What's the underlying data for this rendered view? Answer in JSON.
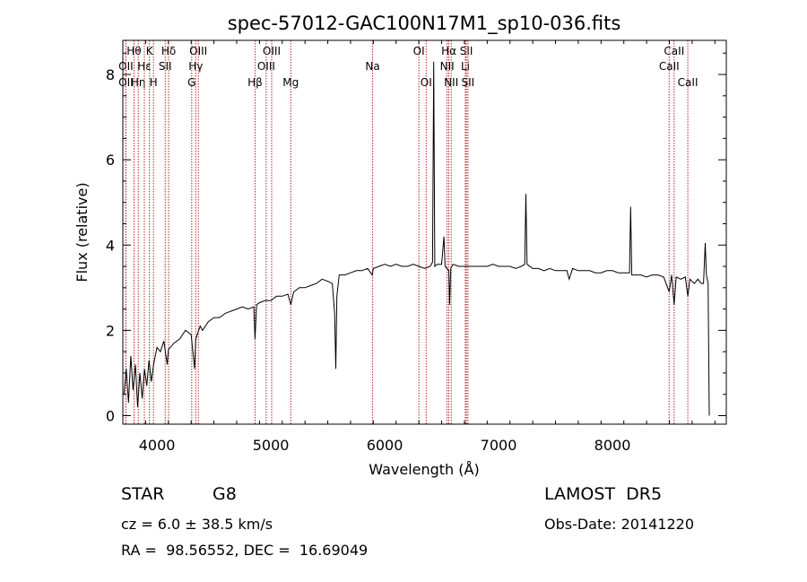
{
  "chart_data": {
    "type": "line",
    "title": "spec-57012-GAC100N17M1_sp10-036.fits",
    "xlabel": "Wavelength (Å)",
    "ylabel": "Flux (relative)",
    "xlim": [
      3700,
      9000
    ],
    "ylim": [
      -0.2,
      8.8
    ],
    "x_ticks": [
      4000,
      5000,
      6000,
      7000,
      8000
    ],
    "y_ticks": [
      0,
      2,
      4,
      6,
      8
    ],
    "grid": false,
    "series": [
      {
        "color": "#000000",
        "points": [
          [
            3710,
            0.5
          ],
          [
            3730,
            1.1
          ],
          [
            3750,
            0.3
          ],
          [
            3770,
            1.4
          ],
          [
            3790,
            0.6
          ],
          [
            3810,
            1.2
          ],
          [
            3830,
            0.2
          ],
          [
            3850,
            1.0
          ],
          [
            3870,
            0.4
          ],
          [
            3890,
            1.1
          ],
          [
            3910,
            0.7
          ],
          [
            3930,
            1.3
          ],
          [
            3950,
            0.8
          ],
          [
            3970,
            1.2
          ],
          [
            4000,
            1.6
          ],
          [
            4030,
            1.5
          ],
          [
            4060,
            1.75
          ],
          [
            4090,
            1.2
          ],
          [
            4100,
            1.55
          ],
          [
            4150,
            1.7
          ],
          [
            4200,
            1.8
          ],
          [
            4250,
            2.0
          ],
          [
            4300,
            1.9
          ],
          [
            4330,
            1.1
          ],
          [
            4340,
            1.8
          ],
          [
            4380,
            2.1
          ],
          [
            4400,
            2.0
          ],
          [
            4450,
            2.2
          ],
          [
            4500,
            2.3
          ],
          [
            4550,
            2.3
          ],
          [
            4600,
            2.4
          ],
          [
            4650,
            2.45
          ],
          [
            4700,
            2.5
          ],
          [
            4750,
            2.55
          ],
          [
            4800,
            2.5
          ],
          [
            4850,
            2.55
          ],
          [
            4861,
            1.8
          ],
          [
            4875,
            2.6
          ],
          [
            4900,
            2.65
          ],
          [
            4950,
            2.7
          ],
          [
            5000,
            2.7
          ],
          [
            5050,
            2.8
          ],
          [
            5100,
            2.8
          ],
          [
            5150,
            2.85
          ],
          [
            5175,
            2.6
          ],
          [
            5200,
            2.9
          ],
          [
            5250,
            3.0
          ],
          [
            5300,
            3.0
          ],
          [
            5350,
            3.05
          ],
          [
            5400,
            3.1
          ],
          [
            5450,
            3.2
          ],
          [
            5500,
            3.15
          ],
          [
            5540,
            3.1
          ],
          [
            5560,
            2.4
          ],
          [
            5570,
            1.1
          ],
          [
            5580,
            2.8
          ],
          [
            5600,
            3.3
          ],
          [
            5650,
            3.3
          ],
          [
            5700,
            3.35
          ],
          [
            5750,
            3.4
          ],
          [
            5800,
            3.4
          ],
          [
            5850,
            3.45
          ],
          [
            5890,
            3.3
          ],
          [
            5900,
            3.45
          ],
          [
            5950,
            3.5
          ],
          [
            6000,
            3.55
          ],
          [
            6050,
            3.5
          ],
          [
            6100,
            3.55
          ],
          [
            6150,
            3.5
          ],
          [
            6200,
            3.5
          ],
          [
            6250,
            3.55
          ],
          [
            6300,
            3.5
          ],
          [
            6350,
            3.45
          ],
          [
            6400,
            3.5
          ],
          [
            6420,
            3.6
          ],
          [
            6430,
            8.3
          ],
          [
            6440,
            3.5
          ],
          [
            6460,
            3.55
          ],
          [
            6500,
            3.55
          ],
          [
            6520,
            4.2
          ],
          [
            6530,
            3.5
          ],
          [
            6563,
            3.4
          ],
          [
            6570,
            2.6
          ],
          [
            6580,
            3.45
          ],
          [
            6600,
            3.55
          ],
          [
            6650,
            3.5
          ],
          [
            6700,
            3.5
          ],
          [
            6750,
            3.5
          ],
          [
            6800,
            3.5
          ],
          [
            6850,
            3.5
          ],
          [
            6900,
            3.5
          ],
          [
            6950,
            3.55
          ],
          [
            7000,
            3.5
          ],
          [
            7050,
            3.5
          ],
          [
            7100,
            3.5
          ],
          [
            7150,
            3.45
          ],
          [
            7200,
            3.5
          ],
          [
            7230,
            3.55
          ],
          [
            7240,
            5.2
          ],
          [
            7250,
            3.55
          ],
          [
            7300,
            3.45
          ],
          [
            7350,
            3.45
          ],
          [
            7400,
            3.4
          ],
          [
            7450,
            3.45
          ],
          [
            7500,
            3.4
          ],
          [
            7550,
            3.4
          ],
          [
            7600,
            3.4
          ],
          [
            7620,
            3.2
          ],
          [
            7650,
            3.45
          ],
          [
            7700,
            3.4
          ],
          [
            7750,
            3.4
          ],
          [
            7800,
            3.4
          ],
          [
            7850,
            3.35
          ],
          [
            7900,
            3.35
          ],
          [
            7950,
            3.4
          ],
          [
            8000,
            3.4
          ],
          [
            8050,
            3.35
          ],
          [
            8100,
            3.35
          ],
          [
            8150,
            3.35
          ],
          [
            8160,
            4.9
          ],
          [
            8170,
            3.3
          ],
          [
            8200,
            3.3
          ],
          [
            8250,
            3.3
          ],
          [
            8300,
            3.25
          ],
          [
            8350,
            3.3
          ],
          [
            8400,
            3.3
          ],
          [
            8450,
            3.25
          ],
          [
            8498,
            2.9
          ],
          [
            8520,
            3.3
          ],
          [
            8542,
            2.6
          ],
          [
            8560,
            3.25
          ],
          [
            8600,
            3.2
          ],
          [
            8640,
            3.25
          ],
          [
            8662,
            2.8
          ],
          [
            8680,
            3.2
          ],
          [
            8720,
            3.1
          ],
          [
            8750,
            3.2
          ],
          [
            8780,
            3.1
          ],
          [
            8800,
            3.1
          ],
          [
            8815,
            4.05
          ],
          [
            8825,
            3.3
          ],
          [
            8840,
            3.1
          ],
          [
            8850,
            0.0
          ]
        ]
      }
    ],
    "emission_lines": [
      {
        "label": "Hθ",
        "x": 3798,
        "row": 0
      },
      {
        "label": "OII",
        "x": 3727,
        "row": 1
      },
      {
        "label": "OII",
        "x": 3727,
        "row": 2
      },
      {
        "label": "Hη",
        "x": 3835,
        "row": 2
      },
      {
        "label": "K",
        "x": 3934,
        "row": 0
      },
      {
        "label": "Hε",
        "x": 3889,
        "row": 1
      },
      {
        "label": "H",
        "x": 3969,
        "row": 2
      },
      {
        "label": "Hδ",
        "x": 4102,
        "row": 0
      },
      {
        "label": "SII",
        "x": 4072,
        "row": 1
      },
      {
        "label": "OIII",
        "x": 4363,
        "row": 0
      },
      {
        "label": "Hγ",
        "x": 4340,
        "row": 1
      },
      {
        "label": "G",
        "x": 4305,
        "row": 2
      },
      {
        "label": "Hβ",
        "x": 4861,
        "row": 2
      },
      {
        "label": "OIII",
        "x": 5007,
        "row": 0
      },
      {
        "label": "OIII",
        "x": 4959,
        "row": 1
      },
      {
        "label": "Mg",
        "x": 5175,
        "row": 2
      },
      {
        "label": "Na",
        "x": 5894,
        "row": 1
      },
      {
        "label": "OI",
        "x": 6300,
        "row": 0
      },
      {
        "label": "OI",
        "x": 6364,
        "row": 2
      },
      {
        "label": "Hα",
        "x": 6563,
        "row": 0
      },
      {
        "label": "NII",
        "x": 6548,
        "row": 1
      },
      {
        "label": "NII",
        "x": 6584,
        "row": 2
      },
      {
        "label": "SII",
        "x": 6717,
        "row": 0
      },
      {
        "label": "Li",
        "x": 6708,
        "row": 1
      },
      {
        "label": "SII",
        "x": 6731,
        "row": 2
      },
      {
        "label": "CaII",
        "x": 8542,
        "row": 0
      },
      {
        "label": "CaII",
        "x": 8498,
        "row": 1
      },
      {
        "label": "CaII",
        "x": 8662,
        "row": 2
      }
    ],
    "line_color": "#b22222"
  },
  "info": {
    "class_label": "STAR",
    "subclass": "G8",
    "survey": "LAMOST  DR5",
    "redshift": "cz = 6.0 ± 38.5 km/s",
    "obs_date": "Obs-Date: 20141220",
    "coords": "RA =  98.56552, DEC =  16.69049"
  }
}
